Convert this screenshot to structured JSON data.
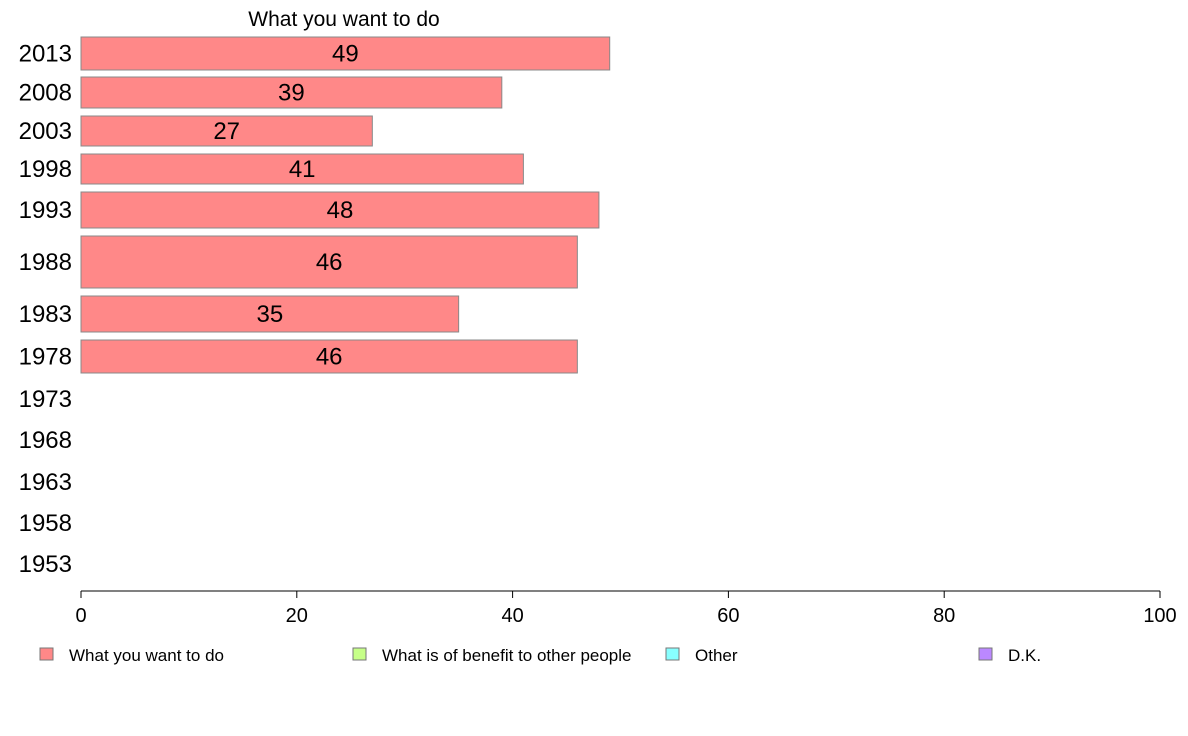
{
  "chart_data": {
    "type": "bar",
    "orientation": "horizontal",
    "title": "What you want to do",
    "categories": [
      "2013",
      "2008",
      "2003",
      "1998",
      "1993",
      "1988",
      "1983",
      "1978",
      "1973",
      "1968",
      "1963",
      "1958",
      "1953"
    ],
    "series": [
      {
        "name": "What you want to do",
        "color": "#ff8888",
        "values": [
          49,
          39,
          27,
          41,
          48,
          46,
          35,
          46,
          null,
          null,
          null,
          null,
          null
        ]
      }
    ],
    "xlim": [
      0,
      100
    ],
    "xticks": [
      0,
      20,
      40,
      60,
      80,
      100
    ],
    "xlabel": "",
    "ylabel": "",
    "grid": false,
    "legend_placement": "bottom",
    "legend": [
      {
        "label": "What you want to do",
        "color": "#ff8888"
      },
      {
        "label": "What is of benefit to other people",
        "color": "#c6ff88"
      },
      {
        "label": "Other",
        "color": "#88ffff"
      },
      {
        "label": "D.K.",
        "color": "#bb88ff"
      }
    ]
  }
}
